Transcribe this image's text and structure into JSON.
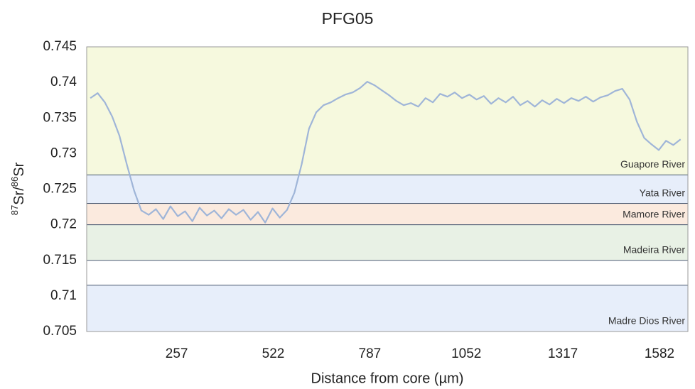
{
  "chart_data": {
    "type": "line",
    "title": "PFG05",
    "xlabel": "Distance from core (µm)",
    "ylabel": [
      "87",
      "Sr/",
      "86",
      "Sr"
    ],
    "xlim": [
      10,
      1660
    ],
    "ylim": [
      0.705,
      0.745
    ],
    "xticks": [
      257,
      522,
      787,
      1052,
      1317,
      1582
    ],
    "yticks": [
      0.705,
      0.71,
      0.715,
      0.72,
      0.725,
      0.73,
      0.735,
      0.74,
      0.745
    ],
    "grid": false,
    "bands": [
      {
        "name": "Guapore  River",
        "range": [
          0.727,
          0.745
        ],
        "color": "#f6f9de"
      },
      {
        "name": "Yata River",
        "range": [
          0.723,
          0.727
        ],
        "color": "#e7eefa"
      },
      {
        "name": "Mamore River",
        "range": [
          0.72,
          0.723
        ],
        "color": "#fbeade"
      },
      {
        "name": "Madeira River",
        "range": [
          0.715,
          0.72
        ],
        "color": "#e8f1e5"
      },
      {
        "name": "Madre Dios River",
        "range": [
          0.705,
          0.7115
        ],
        "color": "#e7eefa"
      }
    ],
    "x": [
      20,
      40,
      60,
      80,
      100,
      120,
      140,
      160,
      180,
      200,
      220,
      240,
      260,
      280,
      300,
      320,
      340,
      360,
      380,
      400,
      420,
      440,
      460,
      480,
      500,
      520,
      540,
      560,
      580,
      600,
      620,
      640,
      660,
      680,
      700,
      720,
      740,
      760,
      780,
      800,
      820,
      840,
      860,
      880,
      900,
      920,
      940,
      960,
      980,
      1000,
      1020,
      1040,
      1060,
      1080,
      1100,
      1120,
      1140,
      1160,
      1180,
      1200,
      1220,
      1240,
      1260,
      1280,
      1300,
      1320,
      1340,
      1360,
      1380,
      1400,
      1420,
      1440,
      1460,
      1480,
      1500,
      1520,
      1540,
      1560,
      1580,
      1600,
      1620,
      1640
    ],
    "series": [
      {
        "name": "PFG05",
        "color": "#9fb5d8",
        "values": [
          0.7378,
          0.7385,
          0.7372,
          0.7352,
          0.7325,
          0.7285,
          0.7248,
          0.722,
          0.7214,
          0.7222,
          0.7208,
          0.7226,
          0.7212,
          0.7219,
          0.7205,
          0.7224,
          0.7213,
          0.722,
          0.7209,
          0.7222,
          0.7214,
          0.7221,
          0.7207,
          0.7218,
          0.7203,
          0.7223,
          0.721,
          0.7221,
          0.7245,
          0.7285,
          0.7335,
          0.7358,
          0.7368,
          0.7372,
          0.7378,
          0.7383,
          0.7386,
          0.7392,
          0.7401,
          0.7396,
          0.7389,
          0.7382,
          0.7374,
          0.7368,
          0.7371,
          0.7366,
          0.7378,
          0.7372,
          0.7384,
          0.738,
          0.7386,
          0.7378,
          0.7383,
          0.7376,
          0.7381,
          0.737,
          0.7378,
          0.7372,
          0.738,
          0.7368,
          0.7374,
          0.7366,
          0.7375,
          0.7369,
          0.7377,
          0.7371,
          0.7378,
          0.7374,
          0.738,
          0.7373,
          0.7379,
          0.7382,
          0.7388,
          0.7391,
          0.7376,
          0.7345,
          0.7322,
          0.7313,
          0.7305,
          0.7318,
          0.7312,
          0.732
        ]
      }
    ]
  }
}
